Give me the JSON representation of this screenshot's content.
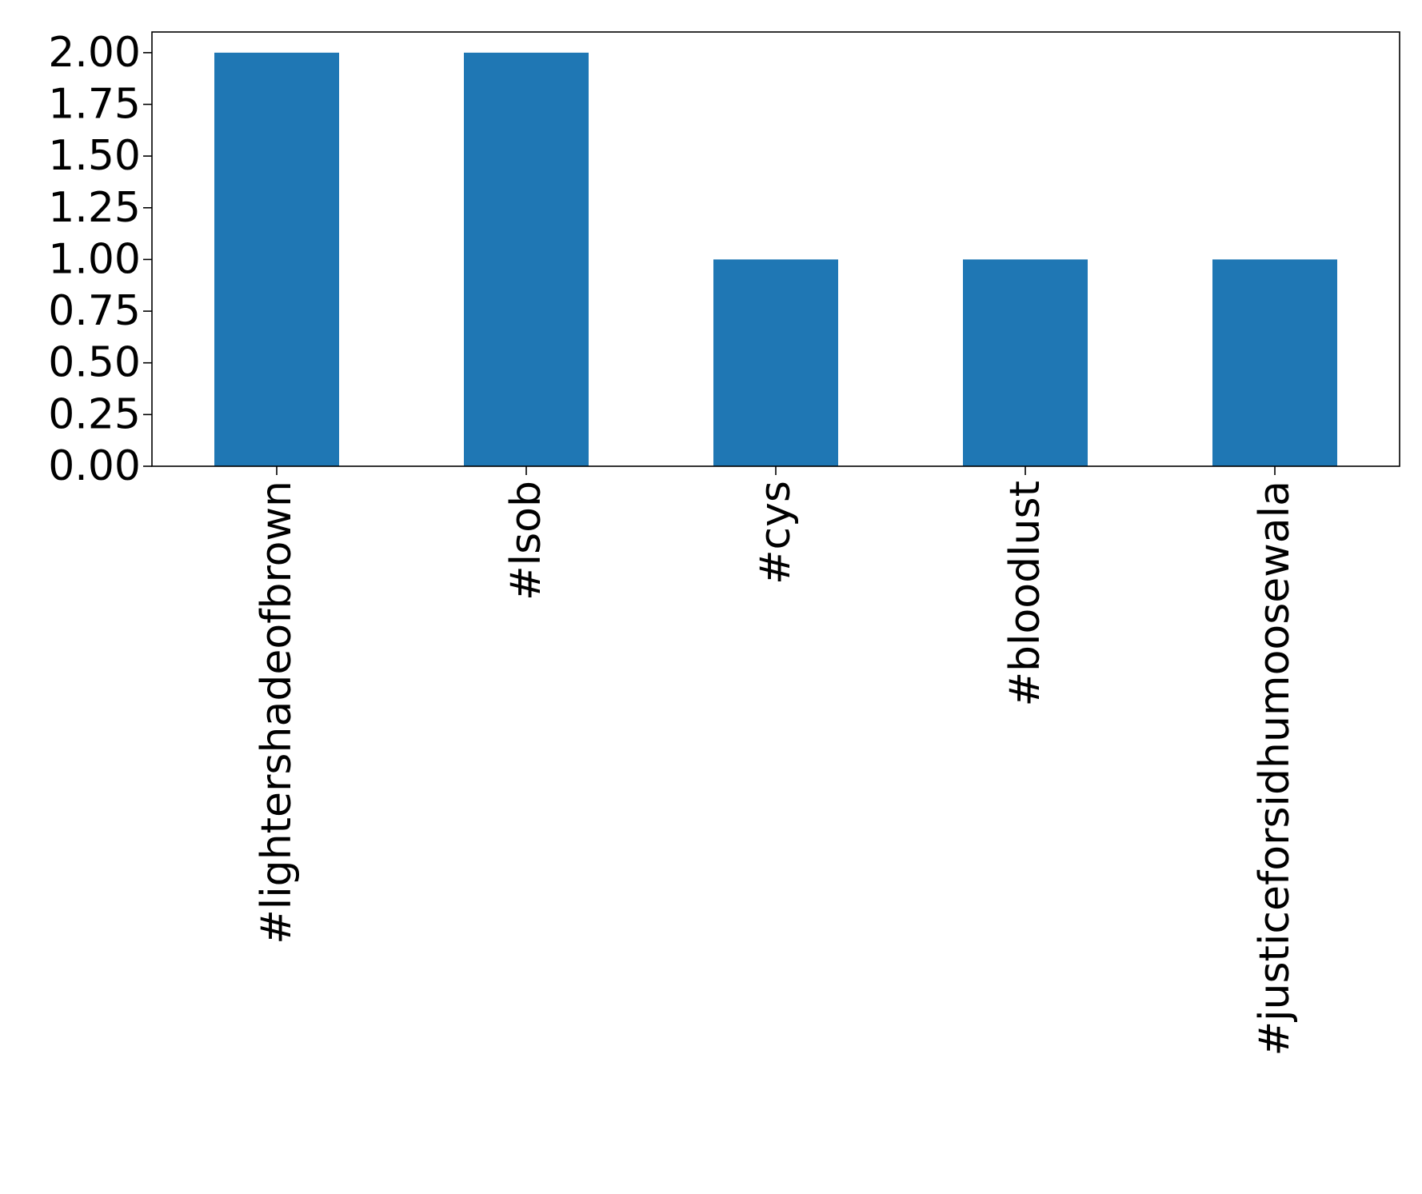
{
  "chart_data": {
    "type": "bar",
    "title": "",
    "xlabel": "",
    "ylabel": "",
    "categories": [
      "#lightershadeofbrown",
      "#lsob",
      "#cys",
      "#bloodlust",
      "#justiceforsidhumoosewala"
    ],
    "values": [
      2,
      2,
      1,
      1,
      1
    ],
    "ylim": [
      0,
      2.1
    ],
    "yticks": [
      0,
      0.25,
      0.5,
      0.75,
      1.0,
      1.25,
      1.5,
      1.75,
      2.0
    ],
    "ytick_labels": [
      "0.00",
      "0.25",
      "0.50",
      "0.75",
      "1.00",
      "1.25",
      "1.50",
      "1.75",
      "2.00"
    ],
    "grid": false,
    "legend": "none",
    "colors": {
      "bar": "#1f77b4",
      "axis": "#000000",
      "background": "#ffffff"
    }
  }
}
